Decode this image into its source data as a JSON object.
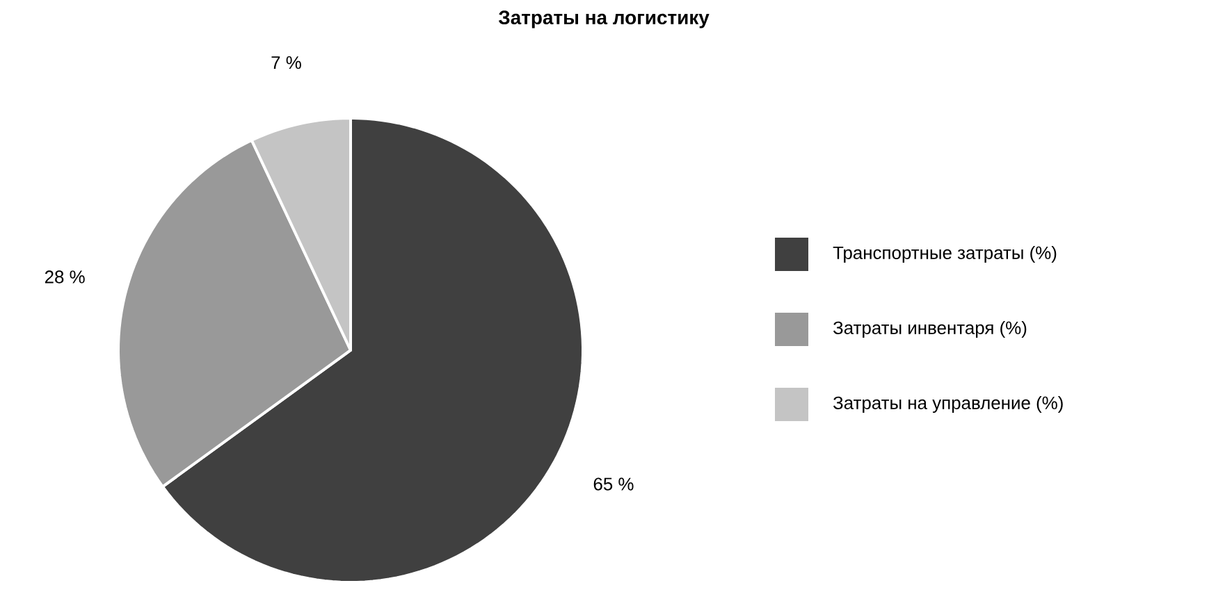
{
  "chart_data": {
    "type": "pie",
    "title": "Затраты на логистику",
    "categories": [
      "Транспортные затраты (%)",
      "Затраты инвентаря (%)",
      "Затраты на управление (%)"
    ],
    "values": [
      65,
      28,
      7
    ],
    "colors": [
      "#404040",
      "#999999",
      "#c4c4c4"
    ],
    "value_labels": [
      "65 %",
      "28 %",
      "7 %"
    ],
    "legend": "right"
  }
}
